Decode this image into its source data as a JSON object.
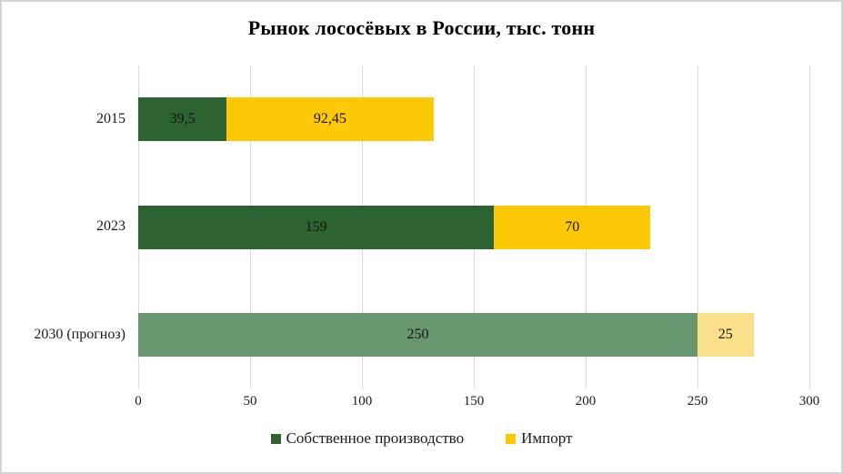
{
  "title": "Рынок лососёвых в России, тыс. тонн",
  "chart_data": {
    "type": "bar",
    "orientation": "horizontal",
    "stacked": true,
    "title": "Рынок лососёвых в России, тыс. тонн",
    "categories": [
      "2015",
      "2023",
      "2030 (прогноз)"
    ],
    "series": [
      {
        "name": "Собственное производство",
        "values": [
          39.5,
          159,
          250
        ],
        "labels": [
          "39,5",
          "159",
          "250"
        ],
        "colors": [
          "#2c6330",
          "#2c6330",
          "#68966f"
        ],
        "legend_color": "#2c6330"
      },
      {
        "name": "Импорт",
        "values": [
          92.45,
          70,
          25
        ],
        "labels": [
          "92,45",
          "70",
          "25"
        ],
        "colors": [
          "#fdc806",
          "#fdc806",
          "#fbe08c"
        ],
        "legend_color": "#fdc806"
      }
    ],
    "xlim": [
      0,
      300
    ],
    "xticks": [
      0,
      50,
      100,
      150,
      200,
      250,
      300
    ],
    "xtick_labels": [
      "0",
      "50",
      "100",
      "150",
      "200",
      "250",
      "300"
    ],
    "grid": "vertical",
    "legend_position": "bottom",
    "ylabel": "",
    "xlabel": ""
  }
}
